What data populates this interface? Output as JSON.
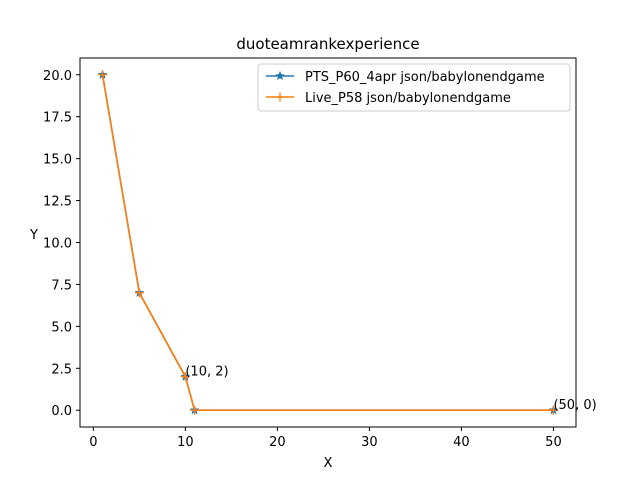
{
  "chart_data": {
    "type": "line",
    "title": "duoteamrankexperience",
    "xlabel": "X",
    "ylabel": "Y",
    "xlim": [
      -1.45,
      52.45
    ],
    "ylim": [
      -1.0,
      21.0
    ],
    "xticks": [
      0,
      10,
      20,
      30,
      40,
      50
    ],
    "yticks": [
      0.0,
      2.5,
      5.0,
      7.5,
      10.0,
      12.5,
      15.0,
      17.5,
      20.0
    ],
    "xtick_labels": [
      "0",
      "10",
      "20",
      "30",
      "40",
      "50"
    ],
    "ytick_labels": [
      "0.0",
      "2.5",
      "5.0",
      "7.5",
      "10.0",
      "12.5",
      "15.0",
      "17.5",
      "20.0"
    ],
    "grid": false,
    "legend_position": "top-right",
    "series": [
      {
        "name": "PTS_P60_4apr json/babylonendgame",
        "color": "#1f77b4",
        "marker": "star",
        "x": [
          1,
          5,
          10,
          11,
          50
        ],
        "y": [
          20,
          7,
          2,
          0,
          0
        ]
      },
      {
        "name": "Live_P58 json/babylonendgame",
        "color": "#ff7f0e",
        "marker": "plus",
        "x": [
          1,
          5,
          10,
          11,
          50
        ],
        "y": [
          20,
          7,
          2,
          0,
          0
        ]
      }
    ],
    "annotations": [
      {
        "text": "(10, 2)",
        "x": 10,
        "y": 2
      },
      {
        "text": "(50, 0)",
        "x": 50,
        "y": 0
      }
    ]
  }
}
